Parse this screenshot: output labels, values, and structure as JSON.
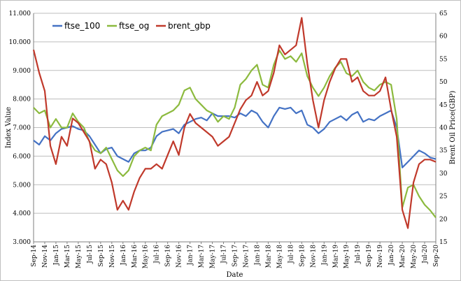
{
  "chart_data": {
    "type": "line",
    "title": "",
    "xlabel": "Date",
    "ylabel": "Index Value",
    "y2label": "Brent Oil Price(GBP)",
    "ylim": [
      3.0,
      11.0
    ],
    "y2lim": [
      15,
      65
    ],
    "yticks": [
      "3.000",
      "4.000",
      "5.000",
      "6.000",
      "7.000",
      "8.000",
      "9.000",
      "10.000",
      "11.000"
    ],
    "y2ticks": [
      "15",
      "20",
      "25",
      "30",
      "35",
      "40",
      "45",
      "50",
      "55",
      "60",
      "65"
    ],
    "xticks": [
      "Sep-14",
      "Nov-14",
      "Jan-15",
      "Mar-15",
      "May-15",
      "Jul-15",
      "Sep-15",
      "Nov-15",
      "Jan-16",
      "Mar-16",
      "May-16",
      "Jul-16",
      "Sep-16",
      "Nov-16",
      "Jan-17",
      "Mar-17",
      "May-17",
      "Jul-17",
      "Sep-17",
      "Nov-17",
      "Jan-18",
      "Mar-18",
      "May-18",
      "Jul-18",
      "Sep-18",
      "Nov-18",
      "Jan-19",
      "Mar-19",
      "May-19",
      "Jul-19",
      "Sep-19",
      "Nov-19",
      "Jan-20",
      "Mar-20",
      "May-20",
      "Jul-20",
      "Sep-20"
    ],
    "grid": true,
    "legend_position": "top-left",
    "x": [
      "Sep-14",
      "Oct-14",
      "Nov-14",
      "Dec-14",
      "Jan-15",
      "Feb-15",
      "Mar-15",
      "Apr-15",
      "May-15",
      "Jun-15",
      "Jul-15",
      "Aug-15",
      "Sep-15",
      "Oct-15",
      "Nov-15",
      "Dec-15",
      "Jan-16",
      "Feb-16",
      "Mar-16",
      "Apr-16",
      "May-16",
      "Jun-16",
      "Jul-16",
      "Aug-16",
      "Sep-16",
      "Oct-16",
      "Nov-16",
      "Dec-16",
      "Jan-17",
      "Feb-17",
      "Mar-17",
      "Apr-17",
      "May-17",
      "Jun-17",
      "Jul-17",
      "Aug-17",
      "Sep-17",
      "Oct-17",
      "Nov-17",
      "Dec-17",
      "Jan-18",
      "Feb-18",
      "Mar-18",
      "Apr-18",
      "May-18",
      "Jun-18",
      "Jul-18",
      "Aug-18",
      "Sep-18",
      "Oct-18",
      "Nov-18",
      "Dec-18",
      "Jan-19",
      "Feb-19",
      "Mar-19",
      "Apr-19",
      "May-19",
      "Jun-19",
      "Jul-19",
      "Aug-19",
      "Sep-19",
      "Oct-19",
      "Nov-19",
      "Dec-19",
      "Jan-20",
      "Feb-20",
      "Mar-20",
      "Apr-20",
      "May-20",
      "Jun-20",
      "Jul-20",
      "Aug-20",
      "Sep-20"
    ],
    "series": [
      {
        "name": "ftse_100",
        "axis": "left",
        "color": "#4472c4",
        "values": [
          6.55,
          6.4,
          6.7,
          6.55,
          6.8,
          6.95,
          7.0,
          7.05,
          6.95,
          6.9,
          6.7,
          6.4,
          6.1,
          6.25,
          6.3,
          6.0,
          5.9,
          5.8,
          6.1,
          6.2,
          6.2,
          6.3,
          6.7,
          6.85,
          6.9,
          6.95,
          6.8,
          7.1,
          7.2,
          7.3,
          7.35,
          7.25,
          7.5,
          7.4,
          7.4,
          7.4,
          7.35,
          7.5,
          7.4,
          7.6,
          7.5,
          7.2,
          7.0,
          7.4,
          7.7,
          7.65,
          7.7,
          7.5,
          7.6,
          7.1,
          7.0,
          6.8,
          6.95,
          7.2,
          7.3,
          7.4,
          7.25,
          7.45,
          7.55,
          7.2,
          7.3,
          7.25,
          7.4,
          7.5,
          7.6,
          7.0,
          5.6,
          5.8,
          6.0,
          6.2,
          6.1,
          5.95,
          5.9
        ]
      },
      {
        "name": "ftse_og",
        "axis": "left",
        "color": "#8cba3e",
        "values": [
          7.7,
          7.5,
          7.6,
          7.0,
          7.3,
          7.0,
          7.0,
          7.5,
          7.2,
          7.0,
          6.5,
          6.2,
          6.1,
          6.3,
          5.9,
          5.5,
          5.3,
          5.5,
          6.0,
          6.2,
          6.3,
          6.2,
          7.1,
          7.4,
          7.5,
          7.6,
          7.8,
          8.3,
          8.4,
          8.0,
          7.8,
          7.6,
          7.5,
          7.2,
          7.4,
          7.3,
          7.7,
          8.5,
          8.7,
          9.0,
          9.2,
          8.5,
          8.4,
          9.2,
          9.7,
          9.4,
          9.5,
          9.3,
          9.6,
          8.8,
          8.4,
          8.1,
          8.4,
          8.8,
          9.1,
          9.3,
          8.9,
          8.8,
          9.0,
          8.6,
          8.4,
          8.3,
          8.5,
          8.6,
          8.5,
          7.3,
          4.2,
          4.9,
          5.0,
          4.6,
          4.3,
          4.1,
          3.85
        ]
      },
      {
        "name": "brent_gbp",
        "axis": "right",
        "color": "#c0392b",
        "values": [
          57,
          52,
          48,
          36,
          32,
          38,
          36,
          42,
          41,
          39,
          37,
          31,
          33,
          32,
          28,
          22,
          24,
          22,
          26,
          29,
          31,
          31,
          32,
          31,
          34,
          37,
          34,
          40,
          43,
          41,
          40,
          39,
          38,
          36,
          37,
          38,
          41,
          44,
          46,
          47,
          50,
          47,
          48,
          52,
          58,
          56,
          57,
          58,
          64,
          54,
          46,
          40,
          46,
          50,
          53,
          55,
          55,
          50,
          51,
          48,
          47,
          47,
          48,
          51,
          44,
          38,
          22,
          18,
          28,
          32,
          33,
          33,
          32.5
        ]
      }
    ]
  }
}
